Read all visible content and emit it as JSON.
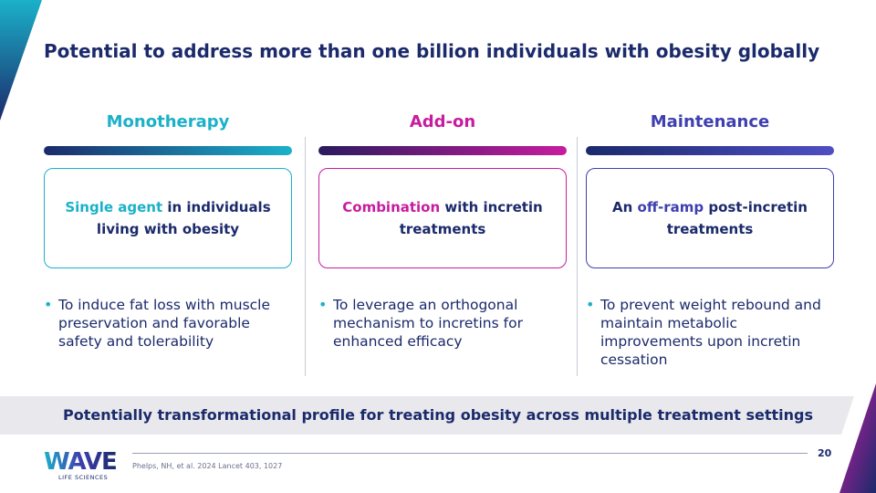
{
  "title": "Potential to address more than one billion individuals with obesity globally",
  "colors": {
    "navy": "#1b2a6b",
    "teal": "#1bb1c9",
    "magenta": "#c71c9f",
    "purple": "#3e3fb0"
  },
  "columns": [
    {
      "heading": "Monotherapy",
      "box": {
        "highlight": "Single agent",
        "before": "",
        "after": " in individuals living with obesity"
      },
      "bullet": "To induce fat loss with muscle preservation and favorable safety and tolerability"
    },
    {
      "heading": "Add-on",
      "box": {
        "highlight": "Combination",
        "before": "",
        "after": " with incretin treatments"
      },
      "bullet": "To leverage an orthogonal mechanism to incretins for enhanced efficacy"
    },
    {
      "heading": "Maintenance",
      "box": {
        "highlight": "off-ramp",
        "before": "An ",
        "after": " post-incretin treatments"
      },
      "bullet": "To prevent weight rebound and maintain metabolic improvements upon incretin cessation"
    }
  ],
  "banner": "Potentially transformational profile for treating obesity across multiple treatment settings",
  "footer": {
    "logo_main": "WAVE",
    "logo_sub": "LIFE SCIENCES",
    "citation": "Phelps, NH, et al. 2024 Lancet 403, 1027",
    "page_number": "20"
  }
}
